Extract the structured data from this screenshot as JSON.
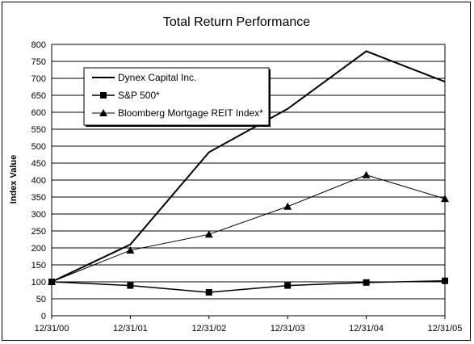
{
  "chart_data": {
    "type": "line",
    "title": "Total Return Performance",
    "ylabel": "Index Value",
    "xlabel": "",
    "ylim": [
      0,
      800
    ],
    "ytick_step": 50,
    "grid": true,
    "legend_position": "top-left",
    "x": [
      "12/31/00",
      "12/31/01",
      "12/31/02",
      "12/31/03",
      "12/31/04",
      "12/31/05"
    ],
    "series": [
      {
        "name": "Dynex Capital Inc.",
        "marker": "none",
        "stroke_width": 2,
        "color": "#000000",
        "values": [
          100,
          210,
          482,
          610,
          780,
          690
        ]
      },
      {
        "name": "S&P 500*",
        "marker": "square",
        "stroke_width": 1.5,
        "color": "#000000",
        "values": [
          100,
          89,
          69,
          89,
          98,
          103
        ]
      },
      {
        "name": "Bloomberg Mortgage REIT Index*",
        "marker": "triangle",
        "stroke_width": 1,
        "color": "#000000",
        "values": [
          100,
          193,
          240,
          322,
          415,
          345
        ]
      }
    ]
  }
}
